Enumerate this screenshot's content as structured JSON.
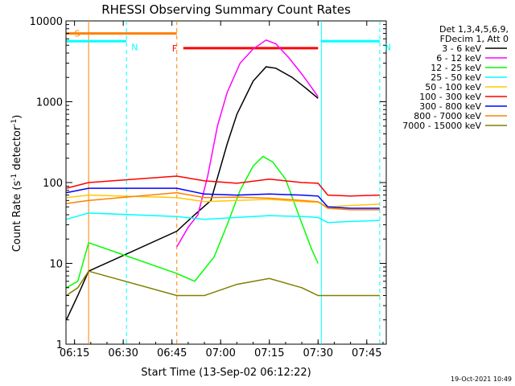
{
  "chart_data": {
    "type": "line",
    "title": "RHESSI Observing Summary Count Rates",
    "xlabel": "Start Time (13-Sep-02 06:12:22)",
    "ylabel_main": "Count Rate (s",
    "ylabel_sup1": "-1",
    "ylabel_mid": " detector",
    "ylabel_sup2": "-1",
    "ylabel_end": ")",
    "y_scale": "log",
    "ylim": [
      1,
      10000
    ],
    "xlim": [
      "06:12:22",
      "07:51:00"
    ],
    "x_ticks": [
      "06:15",
      "06:30",
      "06:45",
      "07:00",
      "07:15",
      "07:30",
      "07:45"
    ],
    "y_ticks": [
      "1",
      "10",
      "100",
      "1000",
      "10000"
    ],
    "legend_header": [
      "Det 1,3,4,5,6,9,",
      "FDecim 1, Att 0"
    ],
    "legend_position": "right",
    "timestamp": "19-Oct-2021 10:49",
    "series": [
      {
        "name": "3 - 6 keV",
        "color": "#000000",
        "points": [
          [
            "06:12:30",
            2.0
          ],
          [
            "06:16:00",
            4.0
          ],
          [
            "06:19:20",
            8.0
          ],
          [
            "06:46:30",
            25
          ],
          [
            "06:52:00",
            40
          ],
          [
            "06:57:00",
            60
          ],
          [
            "07:02:00",
            300
          ],
          [
            "07:05:00",
            700
          ],
          [
            "07:10:00",
            1800
          ],
          [
            "07:14:00",
            2700
          ],
          [
            "07:17:00",
            2600
          ],
          [
            "07:22:00",
            2000
          ],
          [
            "07:26:00",
            1500
          ],
          [
            "07:30:00",
            1100
          ]
        ]
      },
      {
        "name": "6 - 12 keV",
        "color": "#ff00ff",
        "points": [
          [
            "06:46:30",
            16
          ],
          [
            "06:50:00",
            28
          ],
          [
            "06:53:00",
            40
          ],
          [
            "06:56:00",
            120
          ],
          [
            "06:59:00",
            500
          ],
          [
            "07:02:00",
            1300
          ],
          [
            "07:06:00",
            3000
          ],
          [
            "07:10:00",
            4500
          ],
          [
            "07:14:00",
            5800
          ],
          [
            "07:17:00",
            5200
          ],
          [
            "07:21:00",
            3500
          ],
          [
            "07:25:00",
            2200
          ],
          [
            "07:28:00",
            1500
          ],
          [
            "07:30:00",
            1150
          ]
        ]
      },
      {
        "name": "12 - 25 keV",
        "color": "#00ff00",
        "points": [
          [
            "06:12:30",
            5.0
          ],
          [
            "06:16:00",
            6.0
          ],
          [
            "06:19:20",
            18
          ],
          [
            "06:46:30",
            7.5
          ],
          [
            "06:52:00",
            6.0
          ],
          [
            "06:58:00",
            12
          ],
          [
            "07:02:00",
            30
          ],
          [
            "07:06:00",
            80
          ],
          [
            "07:10:00",
            160
          ],
          [
            "07:13:00",
            210
          ],
          [
            "07:16:00",
            180
          ],
          [
            "07:20:00",
            110
          ],
          [
            "07:24:00",
            40
          ],
          [
            "07:28:00",
            15
          ],
          [
            "07:30:00",
            10
          ]
        ]
      },
      {
        "name": "25 - 50 keV",
        "color": "#00ffff",
        "points": [
          [
            "06:12:30",
            35
          ],
          [
            "06:19:20",
            42
          ],
          [
            "06:46:30",
            38
          ],
          [
            "06:55:00",
            35
          ],
          [
            "07:05:00",
            37
          ],
          [
            "07:15:00",
            39
          ],
          [
            "07:25:00",
            38
          ],
          [
            "07:30:00",
            37
          ],
          [
            "07:33:00",
            32
          ],
          [
            "07:40:00",
            33
          ],
          [
            "07:49:00",
            34
          ]
        ]
      },
      {
        "name": "50 - 100 keV",
        "color": "#ffc800",
        "points": [
          [
            "06:12:30",
            65
          ],
          [
            "06:19:20",
            70
          ],
          [
            "06:46:30",
            65
          ],
          [
            "06:55:00",
            58
          ],
          [
            "07:05:00",
            60
          ],
          [
            "07:15:00",
            62
          ],
          [
            "07:25:00",
            58
          ],
          [
            "07:30:00",
            57
          ],
          [
            "07:33:00",
            50
          ],
          [
            "07:40:00",
            52
          ],
          [
            "07:49:00",
            54
          ]
        ]
      },
      {
        "name": "100 - 300 keV",
        "color": "#ff0000",
        "points": [
          [
            "06:12:30",
            85
          ],
          [
            "06:19:20",
            100
          ],
          [
            "06:46:30",
            120
          ],
          [
            "06:55:00",
            105
          ],
          [
            "07:05:00",
            98
          ],
          [
            "07:15:00",
            110
          ],
          [
            "07:25:00",
            100
          ],
          [
            "07:30:00",
            98
          ],
          [
            "07:33:00",
            70
          ],
          [
            "07:40:00",
            68
          ],
          [
            "07:49:00",
            70
          ]
        ]
      },
      {
        "name": "300 - 800 keV",
        "color": "#0000ff",
        "points": [
          [
            "06:12:30",
            75
          ],
          [
            "06:19:20",
            85
          ],
          [
            "06:46:30",
            85
          ],
          [
            "06:55:00",
            72
          ],
          [
            "07:05:00",
            70
          ],
          [
            "07:15:00",
            72
          ],
          [
            "07:25:00",
            70
          ],
          [
            "07:30:00",
            68
          ],
          [
            "07:33:00",
            50
          ],
          [
            "07:40:00",
            48
          ],
          [
            "07:49:00",
            48
          ]
        ]
      },
      {
        "name": "800 - 7000 keV",
        "color": "#ff8000",
        "points": [
          [
            "06:12:30",
            55
          ],
          [
            "06:19:20",
            60
          ],
          [
            "06:46:30",
            75
          ],
          [
            "06:55:00",
            65
          ],
          [
            "07:05:00",
            66
          ],
          [
            "07:15:00",
            64
          ],
          [
            "07:25:00",
            60
          ],
          [
            "07:30:00",
            58
          ],
          [
            "07:33:00",
            48
          ],
          [
            "07:40:00",
            46
          ],
          [
            "07:49:00",
            46
          ]
        ]
      },
      {
        "name": "7000 - 15000 keV",
        "color": "#808000",
        "points": [
          [
            "06:12:30",
            4.0
          ],
          [
            "06:16:00",
            5.0
          ],
          [
            "06:19:20",
            8.0
          ],
          [
            "06:46:30",
            4.0
          ],
          [
            "06:55:00",
            4.0
          ],
          [
            "07:05:00",
            5.5
          ],
          [
            "07:15:00",
            6.5
          ],
          [
            "07:25:00",
            5.0
          ],
          [
            "07:30:00",
            4.0
          ],
          [
            "07:40:00",
            4.0
          ],
          [
            "07:49:00",
            4.0
          ]
        ]
      }
    ],
    "annotations": [
      {
        "label": "S",
        "color": "#ff8000",
        "x_range": [
          "06:12:30",
          "06:46:30"
        ],
        "level": 7000
      },
      {
        "label": "N",
        "color": "#00ffff",
        "x_range": [
          "06:12:30",
          "06:31:00"
        ],
        "level": 5600
      },
      {
        "label": "N",
        "color": "#00ffff",
        "x_range": [
          "07:31:00",
          "07:49:00"
        ],
        "level": 5600
      },
      {
        "label": "F",
        "color": "#ff0000",
        "x_range": [
          "06:48:30",
          "07:30:00"
        ],
        "level": 4600
      }
    ],
    "event_lines": [
      {
        "time": "06:19:20",
        "color": "#ff8000",
        "style": "solid"
      },
      {
        "time": "06:31:00",
        "color": "#00ffff",
        "style": "dashed"
      },
      {
        "time": "06:46:30",
        "color": "#ff8000",
        "style": "dashed"
      },
      {
        "time": "07:31:00",
        "color": "#00ffff",
        "style": "solid"
      },
      {
        "time": "07:49:00",
        "color": "#00ffff",
        "style": "dashed"
      }
    ]
  }
}
